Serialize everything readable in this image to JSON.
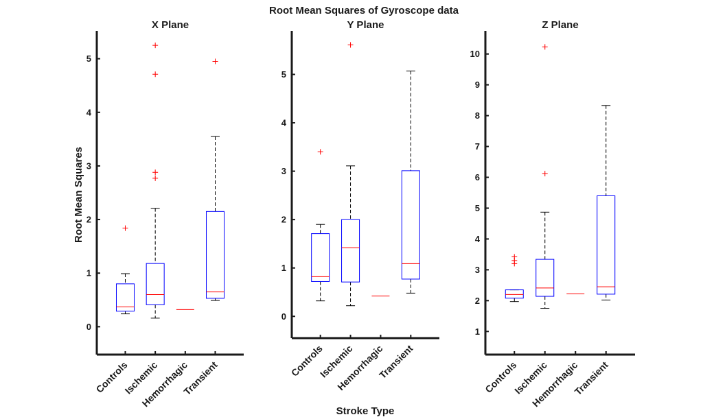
{
  "figure": {
    "title": "Root Mean Squares of Gyroscope data",
    "ylabel": "Root Mean Squares",
    "xlabel": "Stroke Type",
    "colors": {
      "box": "#0000ff",
      "median": "#ff0000",
      "outlier": "#ff0000",
      "whisker": "#000000",
      "axis": "#1a1a1a"
    }
  },
  "chart_data": [
    {
      "type": "box",
      "title": "X Plane",
      "ylabel": "Root Mean Squares",
      "xlabel": "",
      "categories": [
        "Controls",
        "Ischemic",
        "Hemorrhagic",
        "Transient"
      ],
      "ylim": [
        -0.52,
        5.52
      ],
      "yticks": [
        0,
        1,
        2,
        3,
        4,
        5
      ],
      "boxes": [
        {
          "category": "Controls",
          "whisker_low": 0.24,
          "q1": 0.29,
          "median": 0.37,
          "q3": 0.8,
          "whisker_high": 0.99,
          "outliers": [
            1.84
          ]
        },
        {
          "category": "Ischemic",
          "whisker_low": 0.16,
          "q1": 0.41,
          "median": 0.6,
          "q3": 1.18,
          "whisker_high": 2.21,
          "outliers": [
            2.77,
            2.88,
            4.71,
            5.25
          ]
        },
        {
          "category": "Hemorrhagic",
          "whisker_low": 0.32,
          "q1": 0.32,
          "median": 0.32,
          "q3": 0.32,
          "whisker_high": 0.32,
          "outliers": []
        },
        {
          "category": "Transient",
          "whisker_low": 0.49,
          "q1": 0.53,
          "median": 0.65,
          "q3": 2.15,
          "whisker_high": 3.55,
          "outliers": [
            4.95
          ]
        }
      ]
    },
    {
      "type": "box",
      "title": "Y Plane",
      "ylabel": "",
      "xlabel": "Stroke Type",
      "categories": [
        "Controls",
        "Ischemic",
        "Hemorrhagic",
        "Transient"
      ],
      "ylim": [
        -0.45,
        5.9
      ],
      "yticks": [
        0,
        1,
        2,
        3,
        4,
        5
      ],
      "boxes": [
        {
          "category": "Controls",
          "whisker_low": 0.32,
          "q1": 0.72,
          "median": 0.82,
          "q3": 1.71,
          "whisker_high": 1.9,
          "outliers": [
            3.4
          ]
        },
        {
          "category": "Ischemic",
          "whisker_low": 0.22,
          "q1": 0.71,
          "median": 1.42,
          "q3": 2.0,
          "whisker_high": 3.11,
          "outliers": [
            5.61
          ]
        },
        {
          "category": "Hemorrhagic",
          "whisker_low": 0.42,
          "q1": 0.42,
          "median": 0.42,
          "q3": 0.42,
          "whisker_high": 0.42,
          "outliers": []
        },
        {
          "category": "Transient",
          "whisker_low": 0.48,
          "q1": 0.77,
          "median": 1.09,
          "q3": 3.01,
          "whisker_high": 5.07,
          "outliers": []
        }
      ]
    },
    {
      "type": "box",
      "title": "Z Plane",
      "ylabel": "",
      "xlabel": "",
      "categories": [
        "Controls",
        "Ischemic",
        "Hemorrhagic",
        "Transient"
      ],
      "ylim": [
        0.25,
        10.75
      ],
      "yticks": [
        1,
        2,
        3,
        4,
        5,
        6,
        7,
        8,
        9,
        10
      ],
      "boxes": [
        {
          "category": "Controls",
          "whisker_low": 1.97,
          "q1": 2.08,
          "median": 2.2,
          "q3": 2.35,
          "whisker_high": 2.35,
          "outliers": [
            3.2,
            3.3,
            3.42
          ]
        },
        {
          "category": "Ischemic",
          "whisker_low": 1.75,
          "q1": 2.14,
          "median": 2.41,
          "q3": 3.34,
          "whisker_high": 4.87,
          "outliers": [
            6.12,
            10.23
          ]
        },
        {
          "category": "Hemorrhagic",
          "whisker_low": 2.22,
          "q1": 2.22,
          "median": 2.22,
          "q3": 2.22,
          "whisker_high": 2.22,
          "outliers": []
        },
        {
          "category": "Transient",
          "whisker_low": 2.02,
          "q1": 2.21,
          "median": 2.45,
          "q3": 5.4,
          "whisker_high": 8.33,
          "outliers": []
        }
      ]
    }
  ]
}
